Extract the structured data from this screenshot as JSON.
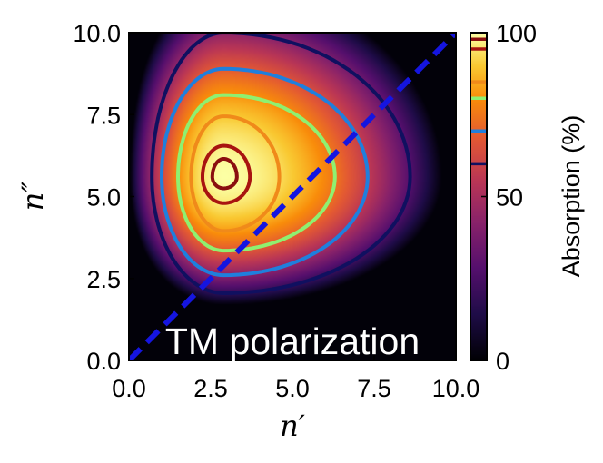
{
  "chart_data": {
    "type": "heatmap",
    "annotation": "TM polarization",
    "xlabel": "n′",
    "ylabel": "n″",
    "xlim": [
      0,
      10
    ],
    "ylim": [
      0,
      10
    ],
    "x_ticks": [
      "0.0",
      "2.5",
      "5.0",
      "7.5",
      "10.0"
    ],
    "y_ticks": [
      "0.0",
      "2.5",
      "5.0",
      "7.5",
      "10.0"
    ],
    "peak": {
      "x": 2.9,
      "y": 5.6,
      "value": 100
    },
    "contours": [
      {
        "level": 60,
        "color": "#101060",
        "x_range": [
          0.7,
          8.6
        ],
        "y_range": [
          2.05,
          10.0
        ]
      },
      {
        "level": 70,
        "color": "#1f7fdd",
        "x_range": [
          1.0,
          7.3
        ],
        "y_range": [
          2.6,
          8.9
        ]
      },
      {
        "level": 80,
        "color": "#8ff070",
        "x_range": [
          1.5,
          6.3
        ],
        "y_range": [
          3.35,
          8.1
        ]
      },
      {
        "level": 85,
        "color": "#f08a1a",
        "x_range": [
          1.9,
          4.6
        ],
        "y_range": [
          3.95,
          7.45
        ]
      },
      {
        "level": 95,
        "color": "#a81410",
        "x_range": [
          2.25,
          3.7
        ],
        "y_range": [
          4.8,
          6.55
        ]
      },
      {
        "level": 98,
        "color": "#8a0f0f",
        "x_range": [
          2.55,
          3.3
        ],
        "y_range": [
          5.25,
          6.15
        ]
      }
    ],
    "reference_line": {
      "style": "dashed",
      "color": "#1515e0",
      "from": [
        0,
        0
      ],
      "to": [
        10,
        10
      ]
    },
    "colorbar": {
      "label": "Absorption (%)",
      "range": [
        0,
        100
      ],
      "ticks": [
        "0",
        "50",
        "100"
      ],
      "tick_values": [
        0,
        50,
        100
      ],
      "contour_marks": [
        60,
        70,
        80,
        85,
        95,
        98
      ]
    }
  }
}
